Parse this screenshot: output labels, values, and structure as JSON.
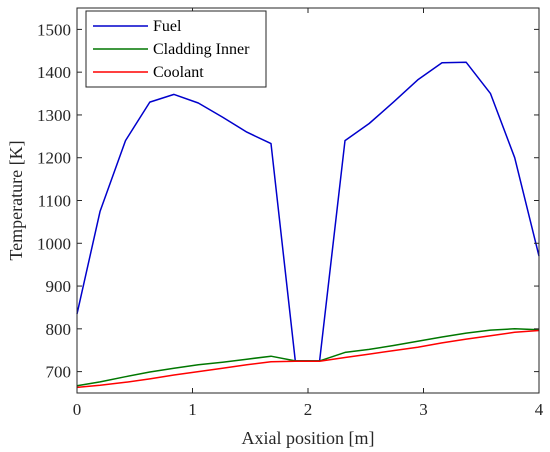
{
  "chart_data": {
    "type": "line",
    "xlabel": "Axial position [m]",
    "ylabel": "Temperature [K]",
    "xlim": [
      0,
      4
    ],
    "ylim": [
      650,
      1550
    ],
    "xticks": [
      0,
      1,
      2,
      3,
      4
    ],
    "yticks": [
      700,
      800,
      900,
      1000,
      1100,
      1200,
      1300,
      1400,
      1500
    ],
    "grid": false,
    "legend_position": "top-left",
    "series": [
      {
        "name": "Fuel",
        "color": "#0000cc",
        "x": [
          0,
          0.2,
          0.42,
          0.63,
          0.84,
          1.05,
          1.26,
          1.47,
          1.68,
          1.89,
          2.1,
          2.32,
          2.53,
          2.74,
          2.95,
          3.16,
          3.37,
          3.58,
          3.79,
          4.0
        ],
        "y": [
          835,
          1075,
          1240,
          1330,
          1348,
          1328,
          1295,
          1260,
          1233,
          725,
          725,
          1240,
          1280,
          1330,
          1382,
          1422,
          1423,
          1350,
          1200,
          970
        ]
      },
      {
        "name": "Cladding Inner",
        "color": "#007700",
        "x": [
          0,
          0.2,
          0.42,
          0.63,
          0.84,
          1.05,
          1.26,
          1.47,
          1.68,
          1.89,
          2.1,
          2.32,
          2.53,
          2.74,
          2.95,
          3.16,
          3.37,
          3.58,
          3.79,
          4.0
        ],
        "y": [
          667,
          676,
          688,
          699,
          708,
          716,
          722,
          729,
          736,
          725,
          725,
          745,
          752,
          761,
          771,
          781,
          790,
          797,
          800,
          798
        ]
      },
      {
        "name": "Coolant",
        "color": "#ff0000",
        "x": [
          0,
          0.2,
          0.42,
          0.63,
          0.84,
          1.05,
          1.26,
          1.47,
          1.68,
          1.89,
          2.1,
          2.32,
          2.53,
          2.74,
          2.95,
          3.16,
          3.37,
          3.58,
          3.79,
          4.0
        ],
        "y": [
          663,
          668,
          675,
          683,
          692,
          700,
          708,
          716,
          723,
          724,
          724,
          733,
          741,
          749,
          757,
          767,
          776,
          784,
          792,
          796
        ]
      }
    ]
  }
}
